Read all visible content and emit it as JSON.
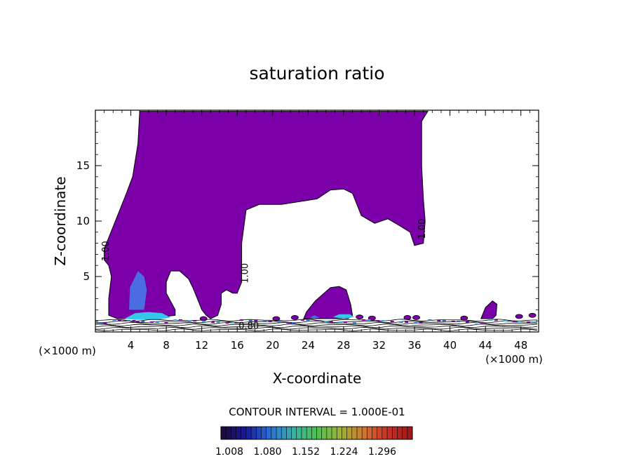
{
  "chart_data": {
    "type": "contour",
    "title": "saturation ratio",
    "xlabel": "X-coordinate",
    "ylabel": "Z-coordinate",
    "x_unit": "(×1000 m)",
    "y_unit": "(×1000 m)",
    "xlim": [
      0,
      50
    ],
    "ylim": [
      0,
      20
    ],
    "x_ticks": [
      "4",
      "8",
      "12",
      "16",
      "20",
      "24",
      "28",
      "32",
      "36",
      "40",
      "44",
      "48"
    ],
    "y_ticks": [
      "5",
      "10",
      "15"
    ],
    "contour_interval_label": "CONTOUR INTERVAL = 1.000E-01",
    "contour_labels": [
      {
        "text": "1.00",
        "x": 1.5,
        "z": 7.3
      },
      {
        "text": "1.00",
        "x": 17.2,
        "z": 5.3
      },
      {
        "text": "1.00",
        "x": 37.2,
        "z": 9.3
      },
      {
        "text": "0.80",
        "x": 17.3,
        "z": 0.3
      }
    ],
    "colorbar": {
      "tick_labels": [
        "1.008",
        "1.080",
        "1.152",
        "1.224",
        "1.296"
      ],
      "colors": [
        "#1c0a40",
        "#1a1a9a",
        "#2a6fd6",
        "#3ab0a8",
        "#4ec24e",
        "#9ab43a",
        "#d2782c",
        "#c83228",
        "#a01818"
      ]
    },
    "region_colors": {
      "supersaturated": "#7b00aa",
      "high": "#35c8e8",
      "medium": "#4a6ee0",
      "subsaturated": "#ffffff"
    },
    "regions": [
      {
        "name": "main-cloud",
        "level": "supersaturated",
        "points": [
          [
            1.0,
            6.5
          ],
          [
            1.0,
            7.5
          ],
          [
            2.0,
            9.5
          ],
          [
            3.5,
            12.5
          ],
          [
            4.2,
            14
          ],
          [
            4.8,
            17
          ],
          [
            5.0,
            19.9
          ],
          [
            37.5,
            19.9
          ],
          [
            36.8,
            19
          ],
          [
            36.8,
            15
          ],
          [
            37,
            12
          ],
          [
            37.2,
            10
          ],
          [
            37,
            8
          ],
          [
            36,
            7.8
          ],
          [
            35.5,
            9
          ],
          [
            34.5,
            9.5
          ],
          [
            33,
            10.2
          ],
          [
            31.5,
            9.8
          ],
          [
            30,
            10.5
          ],
          [
            29,
            12.5
          ],
          [
            28,
            12.9
          ],
          [
            26.5,
            12.8
          ],
          [
            25,
            12
          ],
          [
            21,
            11.5
          ],
          [
            18.5,
            11.5
          ],
          [
            17,
            11
          ],
          [
            16.5,
            8
          ],
          [
            16.5,
            6
          ],
          [
            16.5,
            4.5
          ],
          [
            16,
            3.5
          ],
          [
            15.5,
            3.5
          ],
          [
            14.8,
            3.8
          ],
          [
            14.2,
            3.5
          ],
          [
            14.2,
            2.5
          ],
          [
            13.8,
            1.5
          ],
          [
            13,
            1.2
          ],
          [
            12.5,
            1.5
          ],
          [
            12,
            2
          ],
          [
            11.5,
            3
          ],
          [
            11,
            4
          ],
          [
            10.5,
            4.8
          ],
          [
            9.5,
            5.5
          ],
          [
            8.5,
            5.5
          ],
          [
            8,
            4.5
          ],
          [
            8,
            3.5
          ],
          [
            9,
            2
          ],
          [
            9,
            1.5
          ],
          [
            6,
            1.2
          ],
          [
            2.5,
            1.2
          ],
          [
            1.5,
            1.5
          ],
          [
            1.5,
            3
          ],
          [
            1.8,
            5
          ],
          [
            1.5,
            6
          ]
        ]
      },
      {
        "name": "low-cloud-center",
        "level": "supersaturated",
        "points": [
          [
            23.5,
            1.2
          ],
          [
            23.8,
            1.8
          ],
          [
            24.8,
            2.8
          ],
          [
            25.8,
            3.5
          ],
          [
            26.5,
            4.0
          ],
          [
            27.5,
            4.1
          ],
          [
            28.3,
            3.8
          ],
          [
            28.8,
            2.5
          ],
          [
            29.0,
            1.5
          ],
          [
            28.5,
            1.2
          ]
        ]
      },
      {
        "name": "right-blob",
        "level": "supersaturated",
        "points": [
          [
            43.5,
            1.2
          ],
          [
            44.0,
            2.2
          ],
          [
            44.8,
            2.8
          ],
          [
            45.3,
            2.5
          ],
          [
            45.2,
            1.5
          ],
          [
            44.8,
            1.2
          ]
        ]
      },
      {
        "name": "inner-lobe",
        "level": "medium",
        "points": [
          [
            3.8,
            2.0
          ],
          [
            3.9,
            4.0
          ],
          [
            4.8,
            5.5
          ],
          [
            5.5,
            5.0
          ],
          [
            5.8,
            3.8
          ],
          [
            5.5,
            2.0
          ]
        ]
      },
      {
        "name": "cyan-1",
        "level": "high",
        "points": [
          [
            3.3,
            1.2
          ],
          [
            4.5,
            1.7
          ],
          [
            6.0,
            1.8
          ],
          [
            7.5,
            1.7
          ],
          [
            8.5,
            1.3
          ],
          [
            7.0,
            1.1
          ],
          [
            4.5,
            1.1
          ]
        ]
      },
      {
        "name": "cyan-2",
        "level": "high",
        "points": [
          [
            26.8,
            1.35
          ],
          [
            27.5,
            1.6
          ],
          [
            28.7,
            1.6
          ],
          [
            29.2,
            1.35
          ],
          [
            28.0,
            1.2
          ]
        ]
      },
      {
        "name": "cyan-3",
        "level": "medium",
        "points": [
          [
            24.2,
            1.3
          ],
          [
            24.7,
            1.5
          ],
          [
            25.3,
            1.3
          ],
          [
            24.7,
            1.2
          ]
        ]
      }
    ],
    "strip_colors": [
      "#2a6fd6",
      "#7b00aa",
      "#3ab0e0",
      "#7b00aa"
    ]
  }
}
